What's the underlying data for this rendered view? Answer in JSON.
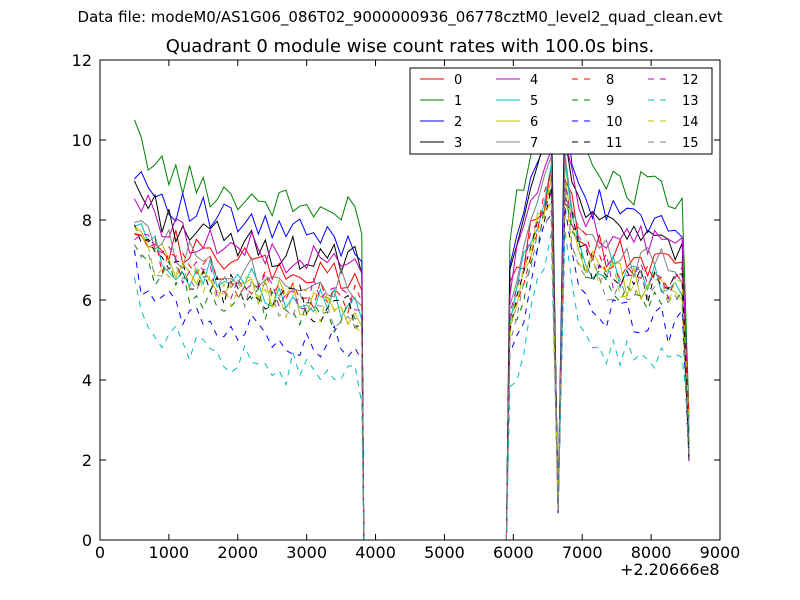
{
  "header": {
    "data_file": "Data file: modeM0/AS1G06_086T02_9000000936_06778cztM0_level2_quad_clean.evt"
  },
  "chart_data": {
    "type": "line",
    "title": "Quadrant 0 module wise count rates with 100.0s bins.",
    "xlabel": "",
    "ylabel": "",
    "x_offset_label": "+2.20666e8",
    "xlim": [
      0,
      9000
    ],
    "ylim": [
      0,
      12
    ],
    "xticks": [
      0,
      1000,
      2000,
      3000,
      4000,
      5000,
      6000,
      7000,
      8000,
      9000
    ],
    "yticks": [
      0,
      2,
      4,
      6,
      8,
      10,
      12
    ],
    "grid": false,
    "legend": {
      "placement": "top-right",
      "columns": 4
    },
    "segments": [
      {
        "x_start": 500,
        "x_end": 3750,
        "step": 100
      },
      {
        "x_start": 5950,
        "x_end": 6550,
        "step": 100
      },
      {
        "x_start": 6750,
        "x_end": 8550,
        "step": 100
      }
    ],
    "series": [
      {
        "name": "0",
        "color": "#ff0000",
        "dash": "solid",
        "level": 7.3,
        "high": 9.1
      },
      {
        "name": "1",
        "color": "#008000",
        "dash": "solid",
        "level": 9.0,
        "high": 11.5
      },
      {
        "name": "2",
        "color": "#0000ff",
        "dash": "solid",
        "level": 8.3,
        "high": 10.8
      },
      {
        "name": "3",
        "color": "#000000",
        "dash": "solid",
        "level": 7.8,
        "high": 10.3
      },
      {
        "name": "4",
        "color": "#bf00bf",
        "dash": "solid",
        "level": 7.7,
        "high": 9.8
      },
      {
        "name": "5",
        "color": "#00bfbf",
        "dash": "solid",
        "level": 6.8,
        "high": 9.2
      },
      {
        "name": "6",
        "color": "#bfbf00",
        "dash": "solid",
        "level": 6.7,
        "high": 9.0
      },
      {
        "name": "7",
        "color": "#808080",
        "dash": "solid",
        "level": 7.2,
        "high": 9.5
      },
      {
        "name": "8",
        "color": "#ff0000",
        "dash": "dashed",
        "level": 6.9,
        "high": 8.9
      },
      {
        "name": "9",
        "color": "#008000",
        "dash": "dashed",
        "level": 6.4,
        "high": 8.5
      },
      {
        "name": "10",
        "color": "#0000ff",
        "dash": "dashed",
        "level": 5.7,
        "high": 8.2
      },
      {
        "name": "11",
        "color": "#000000",
        "dash": "dashed",
        "level": 6.6,
        "high": 8.8
      },
      {
        "name": "12",
        "color": "#bf00bf",
        "dash": "dashed",
        "level": 6.8,
        "high": 9.0
      },
      {
        "name": "13",
        "color": "#00bfbf",
        "dash": "dashed",
        "level": 4.9,
        "high": 7.6
      },
      {
        "name": "14",
        "color": "#bfbf00",
        "dash": "dashed",
        "level": 6.6,
        "high": 8.7
      },
      {
        "name": "15",
        "color": "#808080",
        "dash": "dashed",
        "level": 6.5,
        "high": 8.6
      }
    ]
  }
}
